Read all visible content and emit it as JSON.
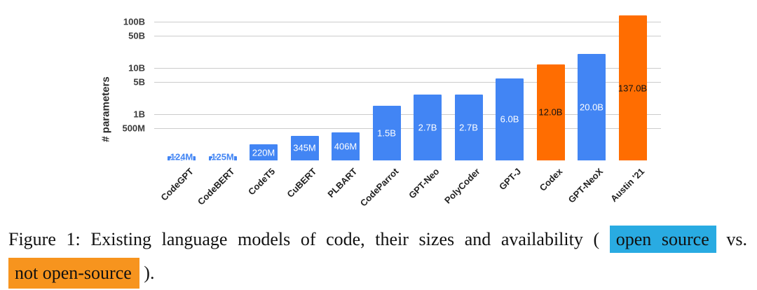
{
  "chart_data": {
    "type": "bar",
    "title": "",
    "xlabel": "",
    "ylabel": "# parameters",
    "yscale": "log",
    "ylim": [
      "100M",
      "150B"
    ],
    "grid": true,
    "legend": "none",
    "yticks": [
      {
        "label": "500M",
        "value_b": 0.5
      },
      {
        "label": "1B",
        "value_b": 1
      },
      {
        "label": "5B",
        "value_b": 5
      },
      {
        "label": "10B",
        "value_b": 10
      },
      {
        "label": "50B",
        "value_b": 50
      },
      {
        "label": "100B",
        "value_b": 100
      }
    ],
    "categories": [
      "CodeGPT",
      "CodeBERT",
      "CodeT5",
      "CuBERT",
      "PLBART",
      "CodeParrot",
      "GPT-Neo",
      "PolyCoder",
      "GPT-J",
      "Codex",
      "GPT-NeoX",
      "Austin '21"
    ],
    "bars": [
      {
        "model": "CodeGPT",
        "value_label": "124M",
        "params_b": 0.124,
        "open_source": true
      },
      {
        "model": "CodeBERT",
        "value_label": "125M",
        "params_b": 0.125,
        "open_source": true
      },
      {
        "model": "CodeT5",
        "value_label": "220M",
        "params_b": 0.22,
        "open_source": true
      },
      {
        "model": "CuBERT",
        "value_label": "345M",
        "params_b": 0.345,
        "open_source": true
      },
      {
        "model": "PLBART",
        "value_label": "406M",
        "params_b": 0.406,
        "open_source": true
      },
      {
        "model": "CodeParrot",
        "value_label": "1.5B",
        "params_b": 1.5,
        "open_source": true
      },
      {
        "model": "GPT-Neo",
        "value_label": "2.7B",
        "params_b": 2.7,
        "open_source": true
      },
      {
        "model": "PolyCoder",
        "value_label": "2.7B",
        "params_b": 2.7,
        "open_source": true
      },
      {
        "model": "GPT-J",
        "value_label": "6.0B",
        "params_b": 6.0,
        "open_source": true
      },
      {
        "model": "Codex",
        "value_label": "12.0B",
        "params_b": 12.0,
        "open_source": false
      },
      {
        "model": "GPT-NeoX",
        "value_label": "20.0B",
        "params_b": 20.0,
        "open_source": true
      },
      {
        "model": "Austin '21",
        "value_label": "137.0B",
        "params_b": 137.0,
        "open_source": false
      }
    ],
    "colors": {
      "open_source_bar": "#4285f4",
      "not_open_source_bar": "#ff6d01",
      "gridline": "#cccccc",
      "outside_label_text": "#4285f4"
    }
  },
  "figure": {
    "caption": {
      "prefix": "Figure 1:  Existing language models of code, their sizes and availability (",
      "open_source_label": "open source",
      "between": "vs.",
      "not_open_source_label": "not open-source",
      "suffix": " )."
    },
    "highlight_colors": {
      "open_source": "#29abe2",
      "not_open_source": "#f7941e"
    }
  }
}
